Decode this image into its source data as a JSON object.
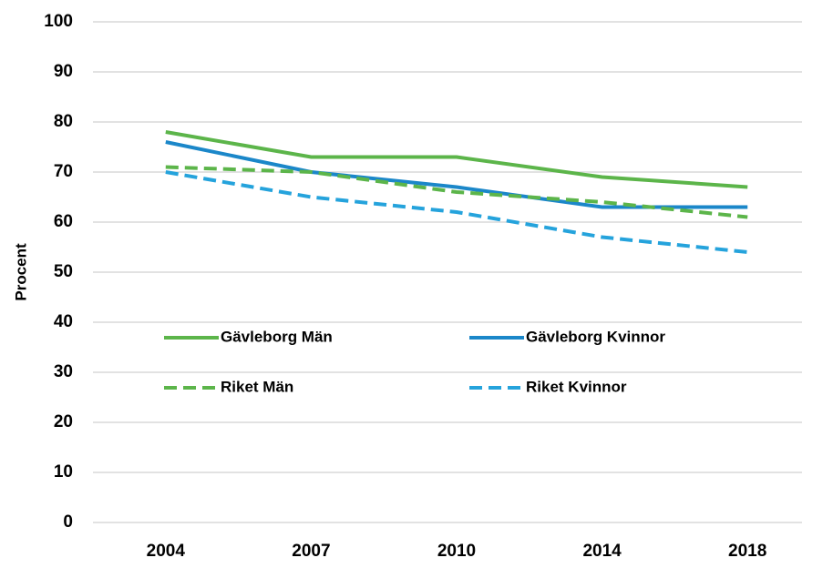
{
  "chart_data": {
    "type": "line",
    "y_label": "Procent",
    "categories": [
      "2004",
      "2007",
      "2010",
      "2014",
      "2018"
    ],
    "series": [
      {
        "name": "Gävleborg Män",
        "color": "#5cb54a",
        "dash": false,
        "values": [
          78,
          73,
          73,
          69,
          67
        ]
      },
      {
        "name": "Gävleborg Kvinnor",
        "color": "#1b87c9",
        "dash": false,
        "values": [
          76,
          70,
          67,
          63,
          63
        ]
      },
      {
        "name": "Riket Män",
        "color": "#5cb54a",
        "dash": true,
        "values": [
          71,
          70,
          66,
          64,
          61
        ]
      },
      {
        "name": "Riket Kvinnor",
        "color": "#25a3dc",
        "dash": true,
        "values": [
          70,
          65,
          62,
          57,
          54
        ]
      }
    ],
    "ylim": [
      0,
      100
    ],
    "yticks": [
      0,
      10,
      20,
      30,
      40,
      50,
      60,
      70,
      80,
      90,
      100
    ],
    "grid": true,
    "legend": "inside"
  }
}
